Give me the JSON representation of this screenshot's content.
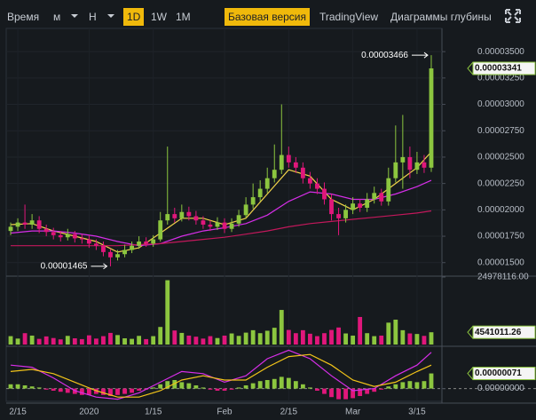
{
  "toolbar": {
    "items": [
      "Время",
      "м",
      "Н",
      "1D",
      "1W",
      "1M"
    ],
    "views": [
      "Базовая версия",
      "TradingView",
      "Диаграммы глубины"
    ]
  },
  "chart_data": [
    {
      "type": "candlestick",
      "categories": [
        null,
        "2/15",
        null,
        null,
        null,
        null,
        null,
        null,
        null,
        null,
        null,
        "2020",
        null,
        null,
        null,
        null,
        null,
        null,
        null,
        null,
        "1/15",
        null,
        null,
        null,
        null,
        null,
        null,
        null,
        null,
        null,
        "Feb",
        null,
        null,
        null,
        null,
        null,
        null,
        null,
        null,
        "2/15",
        null,
        null,
        null,
        null,
        null,
        null,
        null,
        null,
        "Mar",
        null,
        null,
        null,
        null,
        null,
        null,
        null,
        null,
        "3/15",
        null,
        null
      ],
      "open": [
        1.8e-05,
        1.84e-05,
        1.88e-05,
        1.86e-05,
        1.9e-05,
        1.82e-05,
        1.79e-05,
        1.76e-05,
        1.74e-05,
        1.77e-05,
        1.73e-05,
        1.72e-05,
        1.68e-05,
        1.66e-05,
        1.6e-05,
        1.55e-05,
        1.58e-05,
        1.62e-05,
        1.66e-05,
        1.7e-05,
        1.68e-05,
        1.72e-05,
        1.9e-05,
        1.96e-05,
        1.92e-05,
        1.98e-05,
        1.94e-05,
        1.9e-05,
        1.86e-05,
        1.84e-05,
        1.88e-05,
        1.82e-05,
        1.87e-05,
        1.95e-05,
        2.05e-05,
        2.12e-05,
        2.2e-05,
        2.3e-05,
        2.38e-05,
        2.52e-05,
        2.45e-05,
        2.4e-05,
        2.3e-05,
        2.25e-05,
        2.2e-05,
        2.1e-05,
        1.96e-05,
        1.92e-05,
        2e-05,
        2.06e-05,
        2.02e-05,
        2.1e-05,
        2.16e-05,
        2.08e-05,
        2.3e-05,
        2.45e-05,
        2.5e-05,
        2.38e-05,
        2.45e-05,
        2.4e-05
      ],
      "high": [
        1.88e-05,
        1.92e-05,
        2.05e-05,
        1.96e-05,
        1.94e-05,
        1.86e-05,
        1.83e-05,
        1.8e-05,
        1.82e-05,
        1.8e-05,
        1.77e-05,
        1.76e-05,
        1.72e-05,
        1.7e-05,
        1.63e-05,
        1.62e-05,
        1.67e-05,
        1.7e-05,
        1.75e-05,
        1.74e-05,
        1.76e-05,
        1.98e-05,
        2.6e-05,
        2.02e-05,
        2.05e-05,
        2.03e-05,
        1.99e-05,
        1.94e-05,
        1.9e-05,
        1.93e-05,
        1.92e-05,
        1.92e-05,
        2e-05,
        2.12e-05,
        2.25e-05,
        2.28e-05,
        2.4e-05,
        2.62e-05,
        3e-05,
        2.6e-05,
        2.5e-05,
        2.45e-05,
        2.36e-05,
        2.3e-05,
        2.26e-05,
        2.15e-05,
        2.02e-05,
        2.05e-05,
        2.12e-05,
        2.1e-05,
        2.16e-05,
        2.22e-05,
        2.2e-05,
        2.4e-05,
        2.8e-05,
        2.9e-05,
        2.6e-05,
        2.55e-05,
        2.52e-05,
        3.466e-05
      ],
      "low": [
        1.76e-05,
        1.8e-05,
        1.82e-05,
        1.82e-05,
        1.78e-05,
        1.75e-05,
        1.72e-05,
        1.7e-05,
        1.71e-05,
        1.69e-05,
        1.68e-05,
        1.64e-05,
        1.62e-05,
        1.56e-05,
        1.465e-05,
        1.52e-05,
        1.55e-05,
        1.59e-05,
        1.63e-05,
        1.65e-05,
        1.65e-05,
        1.7e-05,
        1.86e-05,
        1.88e-05,
        1.89e-05,
        1.9e-05,
        1.86e-05,
        1.82e-05,
        1.8e-05,
        1.81e-05,
        1.78e-05,
        1.79e-05,
        1.84e-05,
        1.92e-05,
        2.01e-05,
        2.08e-05,
        2.16e-05,
        2.26e-05,
        2.34e-05,
        2.4e-05,
        2.35e-05,
        2.25e-05,
        2.2e-05,
        2.15e-05,
        2.05e-05,
        1.9e-05,
        1.76e-05,
        1.88e-05,
        1.96e-05,
        1.98e-05,
        1.98e-05,
        2.06e-05,
        2.04e-05,
        2.04e-05,
        2.26e-05,
        2.2e-05,
        2.3e-05,
        2.34e-05,
        2.35e-05,
        2.36e-05
      ],
      "close": [
        1.84e-05,
        1.88e-05,
        1.86e-05,
        1.9e-05,
        1.82e-05,
        1.79e-05,
        1.76e-05,
        1.74e-05,
        1.77e-05,
        1.73e-05,
        1.72e-05,
        1.68e-05,
        1.66e-05,
        1.6e-05,
        1.55e-05,
        1.58e-05,
        1.62e-05,
        1.66e-05,
        1.7e-05,
        1.68e-05,
        1.72e-05,
        1.9e-05,
        1.96e-05,
        1.92e-05,
        1.98e-05,
        1.94e-05,
        1.9e-05,
        1.86e-05,
        1.84e-05,
        1.88e-05,
        1.82e-05,
        1.87e-05,
        1.95e-05,
        2.05e-05,
        2.12e-05,
        2.2e-05,
        2.3e-05,
        2.38e-05,
        2.52e-05,
        2.45e-05,
        2.4e-05,
        2.3e-05,
        2.25e-05,
        2.2e-05,
        2.1e-05,
        1.96e-05,
        1.92e-05,
        2e-05,
        2.06e-05,
        2.02e-05,
        2.1e-05,
        2.16e-05,
        2.08e-05,
        2.3e-05,
        2.45e-05,
        2.5e-05,
        2.38e-05,
        2.45e-05,
        2.4e-05,
        3.341e-05
      ],
      "up_color": "#8cc63f",
      "down_color": "#e0177b",
      "last_label": "0.00003341",
      "annotations": [
        {
          "value": 3.466e-05,
          "label": "0.00003466",
          "at": "high"
        },
        {
          "value": 1.465e-05,
          "label": "0.00001465",
          "at": "low"
        }
      ],
      "lines": {
        "x": [
          0,
          3,
          6,
          9,
          12,
          15,
          18,
          21,
          24,
          27,
          30,
          33,
          36,
          39,
          42,
          45,
          48,
          51,
          54,
          57,
          59
        ],
        "series": [
          {
            "color": "#f2d34a",
            "values": [
              1.86e-05,
              1.87e-05,
              1.8e-05,
              1.75e-05,
              1.7e-05,
              1.6e-05,
              1.64e-05,
              1.78e-05,
              1.92e-05,
              1.92e-05,
              1.86e-05,
              1.92e-05,
              2.15e-05,
              2.38e-05,
              2.32e-05,
              2.1e-05,
              2e-05,
              2.1e-05,
              2.25e-05,
              2.4e-05,
              2.55e-05
            ]
          },
          {
            "color": "#d62ee8",
            "values": [
              1.78e-05,
              1.8e-05,
              1.8e-05,
              1.78e-05,
              1.75e-05,
              1.7e-05,
              1.66e-05,
              1.68e-05,
              1.75e-05,
              1.8e-05,
              1.83e-05,
              1.87e-05,
              1.95e-05,
              2.08e-05,
              2.17e-05,
              2.15e-05,
              2.1e-05,
              2.1e-05,
              2.15e-05,
              2.22e-05,
              2.28e-05
            ]
          },
          {
            "color": "#c2185b",
            "values": [
              1.66e-05,
              1.66e-05,
              1.66e-05,
              1.66e-05,
              1.66e-05,
              1.66e-05,
              1.67e-05,
              1.68e-05,
              1.7e-05,
              1.72e-05,
              1.74e-05,
              1.77e-05,
              1.8e-05,
              1.84e-05,
              1.87e-05,
              1.89e-05,
              1.91e-05,
              1.93e-05,
              1.95e-05,
              1.97e-05,
              1.99e-05
            ]
          }
        ]
      },
      "ylim": [
        1.38e-05,
        3.72e-05
      ],
      "yticks": [
        {
          "value": 3.5e-05,
          "label": "0.00003500"
        },
        {
          "value": 3.25e-05,
          "label": "0.00003250"
        },
        {
          "value": 3e-05,
          "label": "0.00003000"
        },
        {
          "value": 2.75e-05,
          "label": "0.00002750"
        },
        {
          "value": 2.5e-05,
          "label": "0.00002500"
        },
        {
          "value": 2.25e-05,
          "label": "0.00002250"
        },
        {
          "value": 2e-05,
          "label": "0.00002000"
        },
        {
          "value": 1.75e-05,
          "label": "0.00001750"
        },
        {
          "value": 1.5e-05,
          "label": "0.00001500"
        }
      ],
      "grid": true
    },
    {
      "type": "volume",
      "values": [
        3100000,
        2200000,
        4200000,
        3300000,
        2100000,
        3000000,
        2400000,
        1900000,
        3200000,
        2300000,
        2000000,
        3400000,
        2200000,
        3100000,
        4300000,
        3500000,
        2300000,
        2100000,
        3200000,
        2000000,
        3100000,
        6500000,
        23800000,
        5200000,
        4300000,
        3300000,
        2900000,
        2200000,
        3100000,
        2400000,
        3300000,
        4100000,
        3200000,
        4400000,
        5300000,
        4200000,
        5100000,
        6200000,
        12800000,
        5400000,
        4200000,
        5300000,
        4000000,
        3100000,
        4200000,
        5400000,
        6300000,
        4100000,
        3300000,
        10200000,
        4200000,
        3100000,
        3300000,
        8100000,
        9200000,
        5300000,
        4100000,
        3900000,
        3200000,
        4541011.26
      ],
      "last_label": "4541011.26",
      "ylim": [
        0,
        24978116
      ],
      "yticks": [
        {
          "value": 24978116,
          "label": "24978116.00"
        }
      ]
    },
    {
      "type": "macd",
      "histogram": [
        2e-07,
        2e-07,
        1.5e-07,
        1e-07,
        5e-08,
        -5e-08,
        -1e-07,
        -1.5e-07,
        -2e-07,
        -2.5e-07,
        -3e-07,
        -3e-07,
        -2.5e-07,
        -3e-07,
        -3.5e-07,
        -3e-07,
        -2.5e-07,
        -2e-07,
        -1e-07,
        -5e-08,
        5e-08,
        2e-07,
        3.5e-07,
        4e-07,
        3e-07,
        2.5e-07,
        1.5e-07,
        5e-08,
        -5e-08,
        -1e-07,
        -1e-07,
        -5e-08,
        5e-08,
        1.5e-07,
        2.5e-07,
        3.5e-07,
        4e-07,
        4.5e-07,
        5.5e-07,
        5e-07,
        3.5e-07,
        2e-07,
        5e-08,
        -1e-07,
        -2.5e-07,
        -4e-07,
        -5e-07,
        -5e-07,
        -4.5e-07,
        -3.5e-07,
        -2.5e-07,
        -1.5e-07,
        -5e-08,
        1e-07,
        2e-07,
        3e-07,
        3.5e-07,
        3e-07,
        3.5e-07,
        7.1e-07
      ],
      "up_color": "#8cc63f",
      "down_color": "#e0177b",
      "last_label": "0.00000071",
      "lines": {
        "x": [
          0,
          3,
          6,
          9,
          12,
          15,
          18,
          21,
          24,
          27,
          30,
          33,
          36,
          39,
          42,
          45,
          48,
          51,
          54,
          57,
          59
        ],
        "series": [
          {
            "color": "#d62ee8",
            "values": [
              1.1e-06,
              1e-06,
              5e-07,
              -1e-07,
              -4e-07,
              -5e-07,
              -2e-07,
              3e-07,
              8e-07,
              7e-07,
              3e-07,
              6e-07,
              1.4e-06,
              1.8e-06,
              1.4e-06,
              6e-07,
              -1e-07,
              0,
              6e-07,
              1.1e-06,
              1.7e-06
            ]
          },
          {
            "color": "#f2c419",
            "values": [
              8e-07,
              9e-07,
              7e-07,
              3e-07,
              -1e-07,
              -4e-07,
              -4e-07,
              -1e-07,
              4e-07,
              6e-07,
              4e-07,
              4e-07,
              1e-06,
              1.5e-06,
              1.6e-06,
              1.1e-06,
              4e-07,
              1e-07,
              3e-07,
              8e-07,
              1.1e-06
            ]
          }
        ]
      },
      "ylim": [
        -6e-07,
        1.9e-06
      ],
      "yticks": [
        {
          "value": 0,
          "label": "0.00000000"
        }
      ]
    }
  ]
}
